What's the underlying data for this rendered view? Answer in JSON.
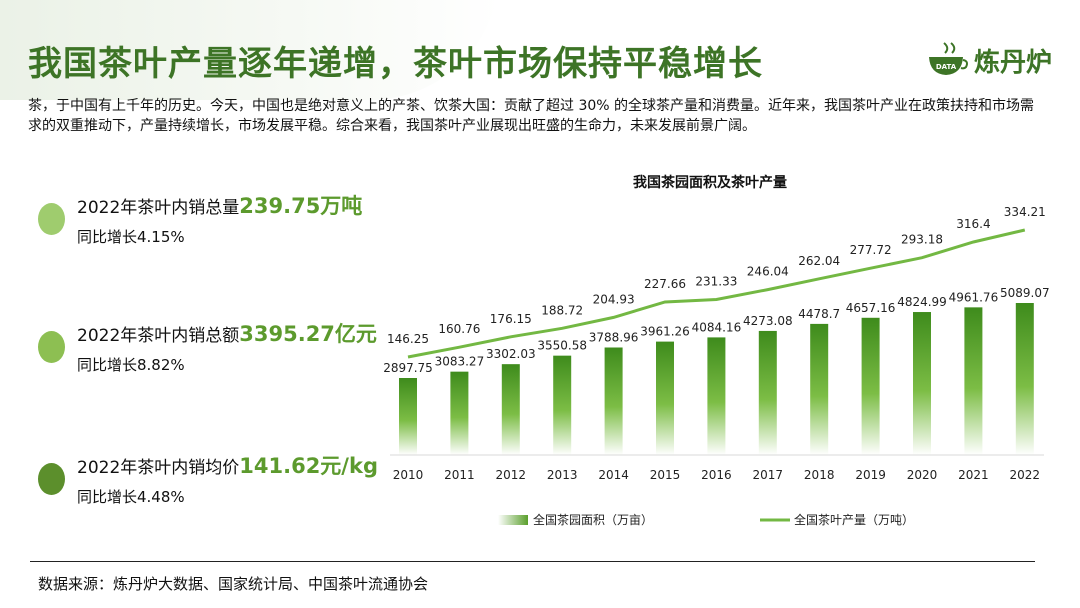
{
  "headline": "我国茶叶产量逐年递增，茶叶市场保持平稳增长",
  "logo": {
    "text": "炼丹炉",
    "badge": "DATA",
    "icon": "teacup-icon"
  },
  "intro": "茶，于中国有上千年的历史。今天，中国也是绝对意义上的产茶、饮茶大国：贡献了超过 30% 的全球茶产量和消费量。近年来，我国茶叶产业在政策扶持和市场需求的双重推动下，产量持续增长，市场发展平稳。综合来看，我国茶叶产业展现出旺盛的生命力，未来发展前景广阔。",
  "kpis": [
    {
      "label": "2022年茶叶内销总量",
      "value": "239.75万吨",
      "growth": "同比增长4.15%",
      "color": "#9fcc6e"
    },
    {
      "label": "2022年茶叶内销总额",
      "value": "3395.27亿元",
      "growth": "同比增长8.82%",
      "color": "#8dbf52"
    },
    {
      "label": "2022年茶叶内销均价",
      "value": "141.62元/kg",
      "growth": "同比增长4.48%",
      "color": "#5c8f2c"
    }
  ],
  "chart_data": {
    "type": "bar",
    "title": "我国茶园面积及茶叶产量",
    "categories": [
      "2010",
      "2011",
      "2012",
      "2013",
      "2014",
      "2015",
      "2016",
      "2017",
      "2018",
      "2019",
      "2020",
      "2021",
      "2022"
    ],
    "series": [
      {
        "name": "全国茶园面积（万亩）",
        "type": "bar",
        "values": [
          2897.75,
          3083.27,
          3302.03,
          3550.58,
          3788.96,
          3961.26,
          4084.16,
          4273.08,
          4478.7,
          4657.16,
          4824.99,
          4961.76,
          5089.07
        ],
        "labels": [
          "2897.75",
          "3083.27",
          "3302.03",
          "3550.58",
          "3788.96",
          "3961.26",
          "4084.16",
          "4273.08",
          "4478.7",
          "4657.16",
          "4824.99",
          "4961.76",
          "5089.07"
        ]
      },
      {
        "name": "全国茶叶产量（万吨）",
        "type": "line",
        "values": [
          146.25,
          160.76,
          176.15,
          188.72,
          204.93,
          227.66,
          231.33,
          246.04,
          262.04,
          277.72,
          293.18,
          316.4,
          334.21
        ],
        "labels": [
          "146.25",
          "160.76",
          "176.15",
          "188.72",
          "204.93",
          "227.66",
          "231.33",
          "246.04",
          "262.04",
          "277.72",
          "293.18",
          "316.4",
          "334.21"
        ]
      }
    ],
    "legend_position": "bottom",
    "grid": false,
    "colors": {
      "bar_top": "#3e8b1c",
      "bar_bottom": "#ffffff",
      "line": "#73b843"
    }
  },
  "source": "数据来源：炼丹炉大数据、国家统计局、中国茶叶流通协会"
}
